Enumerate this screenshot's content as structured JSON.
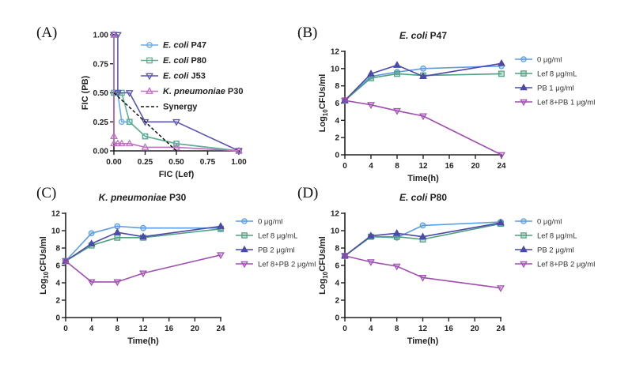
{
  "panels": {
    "A": {
      "letter": "(A)"
    },
    "B": {
      "letter": "(B)"
    },
    "C": {
      "letter": "(C)"
    },
    "D": {
      "letter": "(D)"
    }
  },
  "colors": {
    "p47": "#6aaee6",
    "p80": "#5fb08f",
    "j53": "#5a55b0",
    "kpn": "#c070c0",
    "control": "#5b9de0",
    "lef": "#4fa080",
    "pb": "#4a4aa8",
    "combo": "#a04fb0",
    "synergy": "#111111"
  },
  "chart_data": [
    {
      "id": "A",
      "type": "line",
      "title": "",
      "xlabel": "FIC (Lef)",
      "ylabel": "FIC (PB)",
      "xlim": [
        0,
        1
      ],
      "ylim": [
        0,
        1
      ],
      "xticks": [
        "0.00",
        "0.25",
        "0.50",
        "0.75",
        "1.00"
      ],
      "yticks": [
        "0.00",
        "0.25",
        "0.50",
        "0.75",
        "1.00"
      ],
      "xtick_values": [
        0,
        0.25,
        0.5,
        0.75,
        1
      ],
      "ytick_values": [
        0,
        0.25,
        0.5,
        0.75,
        1
      ],
      "legend_position": "top-right",
      "series": [
        {
          "key": "p47",
          "name_italic": "E. coli",
          "name_rest": " P47",
          "marker": "circle",
          "x": [
            0,
            0,
            0.031,
            0.0625,
            0.125,
            0.25,
            0.5,
            1
          ],
          "y": [
            1,
            0.5,
            0.5,
            0.25,
            0.25,
            0.125,
            0.0625,
            0
          ]
        },
        {
          "key": "p80",
          "name_italic": "E. coli",
          "name_rest": "  P80",
          "marker": "square",
          "x": [
            0,
            0,
            0.031,
            0.0625,
            0.125,
            0.25,
            0.5,
            1
          ],
          "y": [
            1,
            0.5,
            0.5,
            0.5,
            0.25,
            0.125,
            0.0625,
            0
          ]
        },
        {
          "key": "j53",
          "name_italic": "E. coli",
          "name_rest": "  J53",
          "marker": "triangle-down",
          "x": [
            0,
            0.031,
            0.031,
            0.125,
            0.25,
            0.5,
            1
          ],
          "y": [
            1,
            1,
            0.5,
            0.5,
            0.25,
            0.25,
            0
          ]
        },
        {
          "key": "kpn",
          "name_italic": "K. pneumoniae",
          "name_rest": " P30",
          "marker": "triangle-up",
          "x": [
            0,
            0,
            0,
            0.031,
            0.0625,
            0.125,
            0.25,
            0.5,
            1
          ],
          "y": [
            1,
            0.125,
            0.0625,
            0.0625,
            0.0625,
            0.0625,
            0.031,
            0.031,
            0
          ]
        },
        {
          "key": "synergy",
          "name_italic": "",
          "name_rest": "Synergy",
          "marker": "none",
          "dashed": true,
          "x": [
            0,
            0.5
          ],
          "y": [
            0.5,
            0
          ]
        }
      ]
    },
    {
      "id": "B",
      "type": "line",
      "title_italic": "E. coli",
      "title_rest": " P47",
      "xlabel": "Time(h)",
      "ylabel": "Log10CFUs/ml",
      "xlim": [
        0,
        24
      ],
      "ylim": [
        0,
        12
      ],
      "xticks": [
        "0",
        "4",
        "8",
        "12",
        "16",
        "20",
        "24"
      ],
      "yticks": [
        "0",
        "2",
        "4",
        "6",
        "8",
        "10",
        "12"
      ],
      "legend_position": "right",
      "x": [
        0,
        4,
        8,
        12,
        24
      ],
      "series": [
        {
          "key": "control",
          "name": "0 μg/ml",
          "marker": "circle",
          "values": [
            6.3,
            9.1,
            9.6,
            10.0,
            10.3
          ]
        },
        {
          "key": "lef",
          "name": "Lef 8 μg/mL",
          "marker": "square",
          "values": [
            6.3,
            8.9,
            9.4,
            9.2,
            9.4
          ]
        },
        {
          "key": "pb",
          "name": "PB 1 μg/ml",
          "marker": "triangle-up",
          "values": [
            6.3,
            9.4,
            10.4,
            9.1,
            10.6
          ]
        },
        {
          "key": "combo",
          "name": "Lef 8+PB 1 μg/ml",
          "marker": "triangle-down",
          "values": [
            6.3,
            5.8,
            5.1,
            4.5,
            0
          ]
        }
      ]
    },
    {
      "id": "C",
      "type": "line",
      "title_italic": "K. pneumoniae",
      "title_rest": " P30",
      "xlabel": "Time(h)",
      "ylabel": "Log10CFUs/ml",
      "xlim": [
        0,
        24
      ],
      "ylim": [
        0,
        12
      ],
      "xticks": [
        "0",
        "4",
        "8",
        "12",
        "16",
        "20",
        "24"
      ],
      "yticks": [
        "0",
        "2",
        "4",
        "6",
        "8",
        "10",
        "12"
      ],
      "legend_position": "right",
      "x": [
        0,
        4,
        8,
        12,
        24
      ],
      "series": [
        {
          "key": "control",
          "name": "0 μg/ml",
          "marker": "circle",
          "values": [
            6.5,
            9.7,
            10.5,
            10.3,
            10.3
          ]
        },
        {
          "key": "lef",
          "name": "Lef 8 μg/mL",
          "marker": "square",
          "values": [
            6.5,
            8.3,
            9.2,
            9.2,
            10.2
          ]
        },
        {
          "key": "pb",
          "name": "PB 2 μg/ml",
          "marker": "triangle-up",
          "values": [
            6.5,
            8.5,
            9.8,
            9.3,
            10.5
          ]
        },
        {
          "key": "combo",
          "name": "Lef 8+PB 2 μg/ml",
          "marker": "triangle-down",
          "values": [
            6.5,
            4.1,
            4.1,
            5.1,
            7.2
          ]
        }
      ]
    },
    {
      "id": "D",
      "type": "line",
      "title_italic": "E. coli",
      "title_rest": " P80",
      "xlabel": "Time(h)",
      "ylabel": "Log10CFUs/ml",
      "xlim": [
        0,
        24
      ],
      "ylim": [
        0,
        12
      ],
      "xticks": [
        "0",
        "4",
        "8",
        "12",
        "16",
        "20",
        "24"
      ],
      "yticks": [
        "0",
        "2",
        "4",
        "6",
        "8",
        "10",
        "12"
      ],
      "legend_position": "right",
      "x": [
        0,
        4,
        8,
        12,
        24
      ],
      "series": [
        {
          "key": "control",
          "name": "0 μg/ml",
          "marker": "circle",
          "values": [
            7.1,
            9.3,
            9.2,
            10.6,
            11.0
          ]
        },
        {
          "key": "lef",
          "name": "Lef 8 μg/mL",
          "marker": "square",
          "values": [
            7.1,
            9.3,
            9.3,
            9.0,
            10.8
          ]
        },
        {
          "key": "pb",
          "name": "PB 2 μg/ml",
          "marker": "triangle-up",
          "values": [
            7.1,
            9.4,
            9.7,
            9.3,
            10.9
          ]
        },
        {
          "key": "combo",
          "name": "Lef 8+PB 2 μg/ml",
          "marker": "triangle-down",
          "values": [
            7.1,
            6.4,
            5.9,
            4.6,
            3.4
          ]
        }
      ]
    }
  ]
}
